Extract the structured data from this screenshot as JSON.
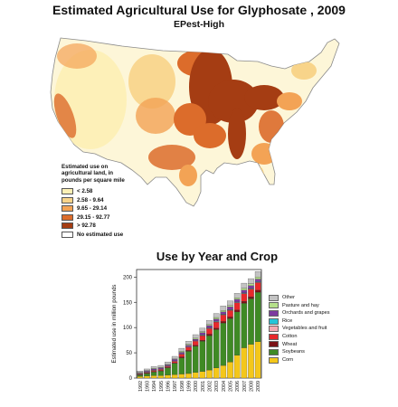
{
  "map": {
    "title": "Estimated Agricultural Use for Glyphosate , 2009",
    "subtitle": "EPest-High",
    "legend": {
      "title_lines": [
        "Estimated use on",
        "agricultural land, in",
        "pounds per square mile"
      ],
      "items": [
        {
          "label": "< 2.58",
          "color": "#fdf0b5"
        },
        {
          "label": "2.58 - 9.64",
          "color": "#f8d48a"
        },
        {
          "label": "9.65 - 29.14",
          "color": "#f3a355"
        },
        {
          "label": "29.15 - 92.77",
          "color": "#dc6c2b"
        },
        {
          "label": "> 92.78",
          "color": "#a53d13"
        },
        {
          "label": "No estimated use",
          "color": "#ffffff"
        }
      ]
    }
  },
  "chart_data": {
    "type": "bar",
    "stacked": true,
    "title": "Use by Year and Crop",
    "xlabel": "",
    "ylabel": "Estimated use in million pounds",
    "ylim": [
      0,
      215
    ],
    "yticks": [
      0,
      50,
      100,
      150,
      200
    ],
    "grid": false,
    "legend_position": "right",
    "categories": [
      "1992",
      "1993",
      "1994",
      "1995",
      "1996",
      "1997",
      "1998",
      "1999",
      "2000",
      "2001",
      "2002",
      "2003",
      "2004",
      "2005",
      "2006",
      "2007",
      "2008",
      "2009"
    ],
    "series": [
      {
        "name": "Corn",
        "color": "#f4c71a",
        "values": [
          3,
          4,
          5,
          5,
          6,
          7,
          8,
          9,
          11,
          13,
          16,
          20,
          25,
          32,
          45,
          60,
          67,
          72
        ]
      },
      {
        "name": "Soybeans",
        "color": "#3f8a24",
        "values": [
          3,
          5,
          7,
          9,
          14,
          22,
          32,
          44,
          52,
          60,
          68,
          76,
          84,
          86,
          86,
          88,
          90,
          98
        ]
      },
      {
        "name": "Wheat",
        "color": "#7a1216",
        "values": [
          1,
          1,
          1,
          1,
          1,
          1,
          2,
          2,
          2,
          2,
          3,
          3,
          3,
          3,
          4,
          4,
          4,
          4
        ]
      },
      {
        "name": "Cotton",
        "color": "#e8282b",
        "values": [
          1,
          1,
          2,
          2,
          2,
          3,
          5,
          6,
          8,
          9,
          11,
          12,
          13,
          13,
          14,
          15,
          15,
          15
        ]
      },
      {
        "name": "Vegetables and fruit",
        "color": "#f6a9b2",
        "values": [
          1,
          1,
          1,
          1,
          1,
          1,
          1,
          1,
          1,
          1,
          1,
          1,
          1,
          1,
          1,
          1,
          1,
          1
        ]
      },
      {
        "name": "Rice",
        "color": "#25c5d8",
        "values": [
          0,
          0,
          0,
          0,
          0,
          0,
          0,
          0,
          0,
          1,
          1,
          1,
          1,
          1,
          1,
          1,
          1,
          1
        ]
      },
      {
        "name": "Orchards and grapes",
        "color": "#7d3ba0",
        "values": [
          1,
          2,
          2,
          2,
          2,
          3,
          3,
          3,
          3,
          4,
          4,
          4,
          4,
          5,
          5,
          5,
          5,
          5
        ]
      },
      {
        "name": "Pasture and hay",
        "color": "#b5e08a",
        "values": [
          1,
          1,
          1,
          1,
          1,
          1,
          2,
          2,
          2,
          2,
          2,
          3,
          3,
          3,
          3,
          4,
          4,
          4
        ]
      },
      {
        "name": "Other",
        "color": "#c3c3c3",
        "values": [
          3,
          3,
          4,
          4,
          5,
          5,
          6,
          6,
          7,
          7,
          8,
          8,
          9,
          9,
          9,
          10,
          10,
          11
        ]
      }
    ]
  }
}
